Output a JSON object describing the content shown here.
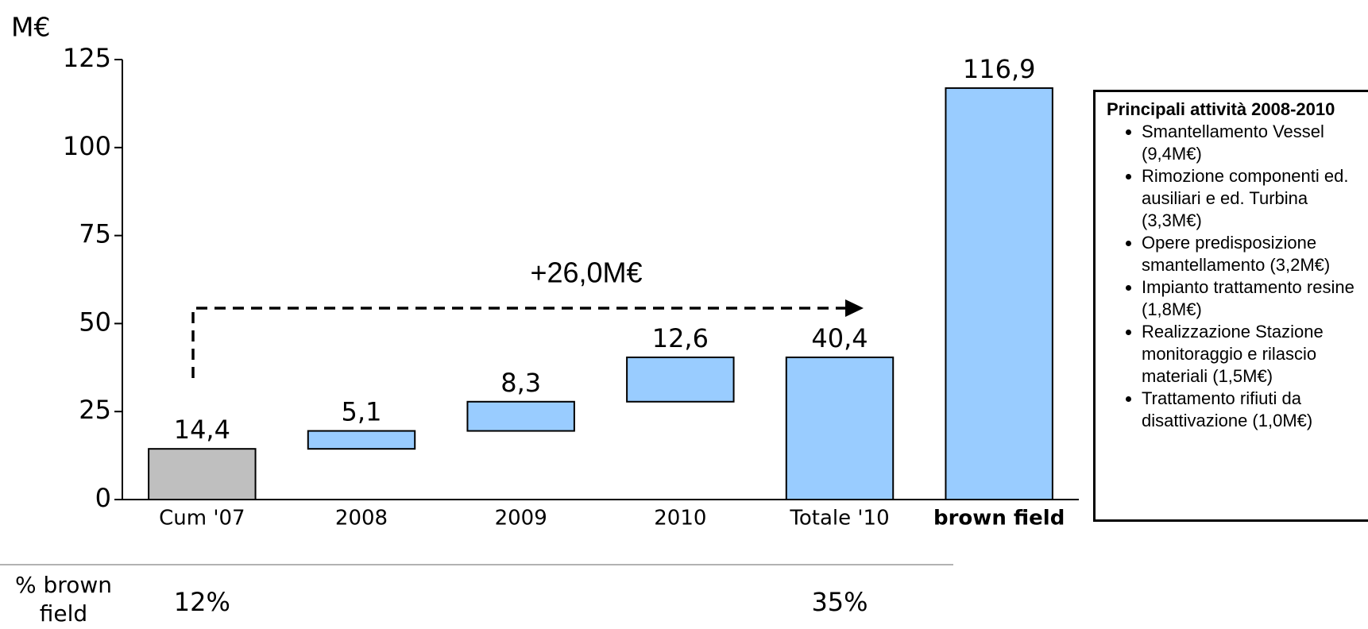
{
  "chart_data": {
    "type": "waterfall",
    "y_label": "M€",
    "categories": [
      "Cum '07",
      "2008",
      "2009",
      "2010",
      "Totale '10",
      "brown field"
    ],
    "values": [
      14.4,
      5.1,
      8.3,
      12.6,
      40.4,
      116.9
    ],
    "value_labels": [
      "14,4",
      "5,1",
      "8,3",
      "12,6",
      "40,4",
      "116,9"
    ],
    "measures": [
      "absolute",
      "relative",
      "relative",
      "relative",
      "total",
      "absolute"
    ],
    "colors": [
      "#bfbfbf",
      "#99ccff",
      "#99ccff",
      "#99ccff",
      "#99ccff",
      "#99ccff"
    ],
    "ylim": [
      0,
      125
    ],
    "yticks": [
      0,
      25,
      50,
      75,
      100,
      125
    ],
    "annotation": "+26,0M€",
    "percent_row": {
      "label": "% brown field",
      "values": [
        12,
        null,
        null,
        null,
        35,
        null
      ],
      "value_labels": [
        "12%",
        null,
        null,
        null,
        "35%",
        null
      ]
    },
    "side_box": {
      "title": "Principali attività 2008-2010",
      "items": [
        "Smantellamento Vessel (9,4M€)",
        "Rimozione componenti ed. ausiliari e ed. Turbina (3,3M€)",
        "Opere predisposizione smantellamento (3,2M€)",
        "Impianto trattamento resine (1,8M€)",
        "Realizzazione Stazione monitoraggio e rilascio materiali (1,5M€)",
        "Trattamento rifiuti da disattivazione (1,0M€)"
      ]
    }
  }
}
